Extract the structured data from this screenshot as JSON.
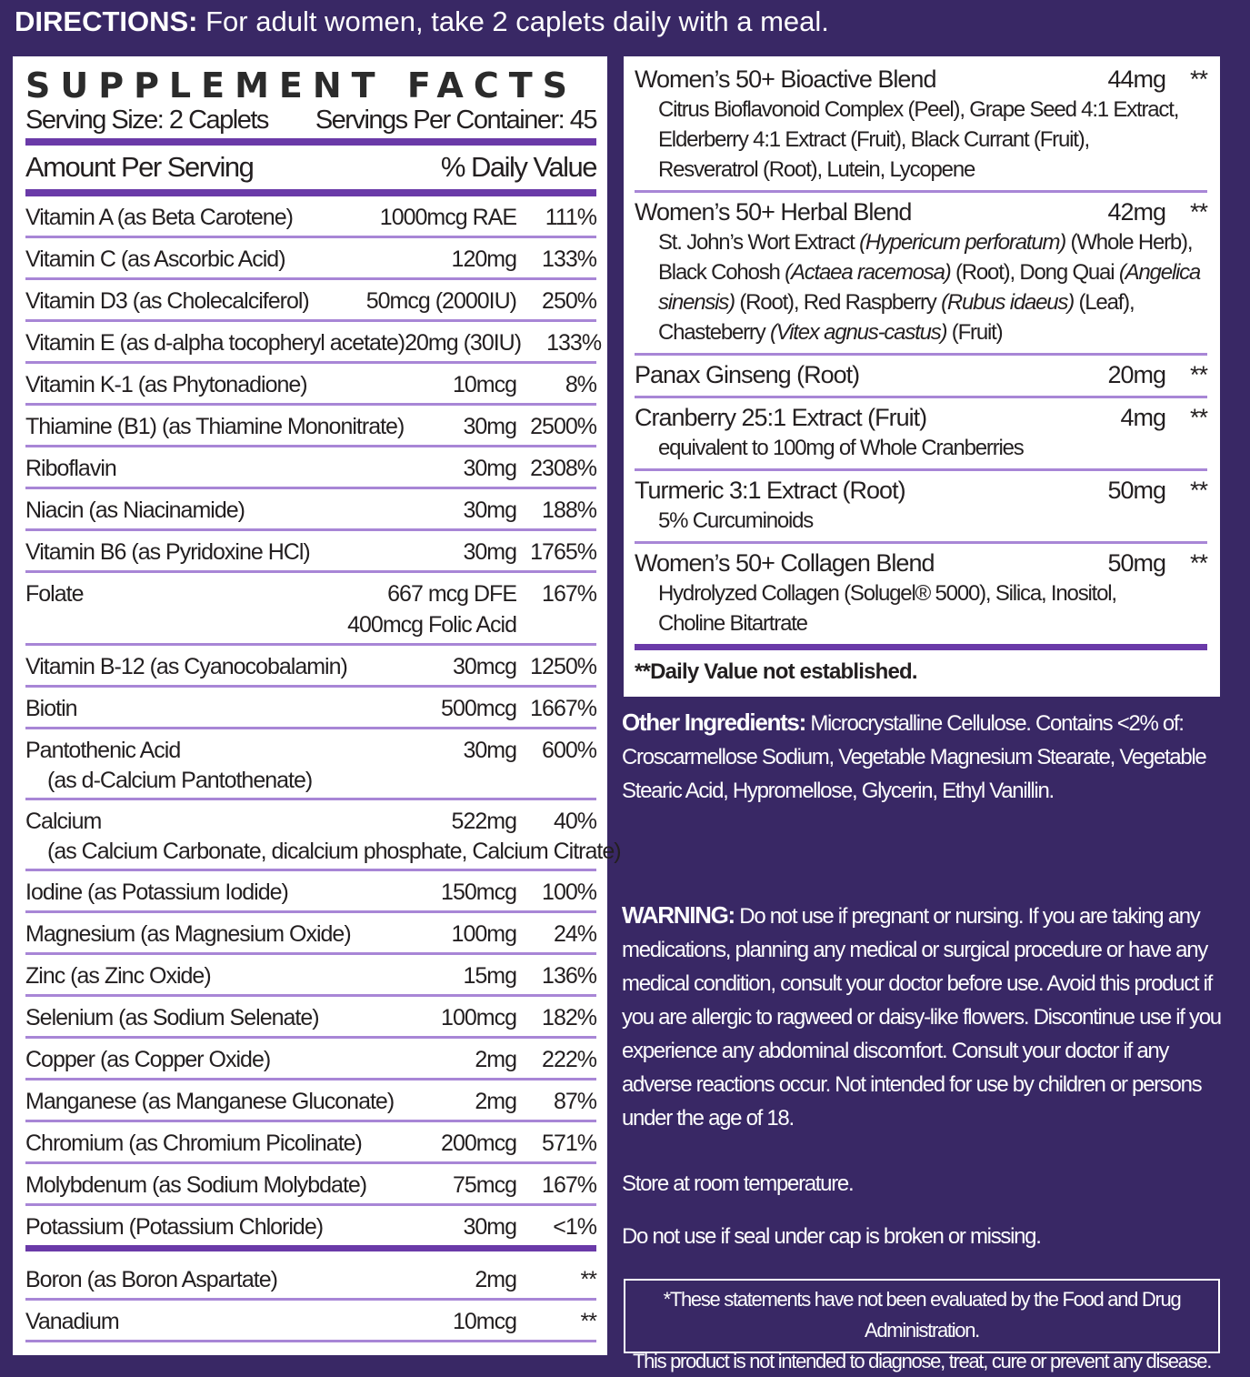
{
  "directions": {
    "label": "DIRECTIONS:",
    "text": " For adult women, take 2 caplets daily with a meal."
  },
  "facts": {
    "title": "SUPPLEMENT FACTS",
    "serving_size": "Serving Size: 2 Caplets",
    "servings_per_container": "Servings Per Container: 45",
    "amount_header": "Amount Per Serving",
    "dv_header": "% Daily Value",
    "rows": [
      {
        "name": "Vitamin A (as Beta Carotene)",
        "amount": "1000mcg RAE",
        "dv": "111%"
      },
      {
        "name": "Vitamin C (as Ascorbic Acid)",
        "amount": "120mg",
        "dv": "133%"
      },
      {
        "name": "Vitamin D3 (as Cholecalciferol)",
        "amount": "50mcg (2000IU)",
        "dv": "250%"
      },
      {
        "name": "Vitamin E (as d-alpha tocopheryl acetate)",
        "amount": "20mg (30IU)",
        "dv": "133%"
      },
      {
        "name": "Vitamin K-1 (as Phytonadione)",
        "amount": "10mcg",
        "dv": "8%"
      },
      {
        "name": "Thiamine (B1) (as Thiamine Mononitrate)",
        "amount": "30mg",
        "dv": "2500%"
      },
      {
        "name": "Riboflavin",
        "amount": "30mg",
        "dv": "2308%"
      },
      {
        "name": "Niacin (as Niacinamide)",
        "amount": "30mg",
        "dv": "188%"
      },
      {
        "name": "Vitamin B6 (as Pyridoxine HCl)",
        "amount": "30mg",
        "dv": "1765%"
      },
      {
        "name": "Folate",
        "amount": "667 mcg DFE",
        "amount2": "400mcg Folic Acid",
        "dv": "167%"
      },
      {
        "name": "Vitamin B-12 (as Cyanocobalamin)",
        "amount": "30mcg",
        "dv": "1250%"
      },
      {
        "name": "Biotin",
        "amount": "500mcg",
        "dv": "1667%"
      },
      {
        "name": "Pantothenic Acid",
        "sub": "(as d-Calcium Pantothenate)",
        "amount": "30mg",
        "dv": "600%"
      },
      {
        "name": "Calcium",
        "sub": "(as Calcium Carbonate, dicalcium phosphate, Calcium Citrate)",
        "amount": "522mg",
        "dv": "40%"
      },
      {
        "name": "Iodine (as Potassium Iodide)",
        "amount": "150mcg",
        "dv": "100%"
      },
      {
        "name": "Magnesium (as Magnesium Oxide)",
        "amount": "100mg",
        "dv": "24%"
      },
      {
        "name": "Zinc (as Zinc Oxide)",
        "amount": "15mg",
        "dv": "136%"
      },
      {
        "name": "Selenium (as Sodium Selenate)",
        "amount": "100mcg",
        "dv": "182%"
      },
      {
        "name": "Copper (as Copper Oxide)",
        "amount": "2mg",
        "dv": "222%"
      },
      {
        "name": "Manganese (as Manganese Gluconate)",
        "amount": "2mg",
        "dv": "87%"
      },
      {
        "name": "Chromium (as Chromium Picolinate)",
        "amount": "200mcg",
        "dv": "571%"
      },
      {
        "name": "Molybdenum (as Sodium Molybdate)",
        "amount": "75mcg",
        "dv": "167%"
      },
      {
        "name": "Potassium (Potassium Chloride)",
        "amount": "30mg",
        "dv": "<1%"
      },
      {
        "name": "Boron (as Boron Aspartate)",
        "amount": "2mg",
        "dv": "**"
      },
      {
        "name": "Vanadium",
        "amount": "10mcg",
        "dv": "**"
      }
    ]
  },
  "blends": [
    {
      "name": "Women’s 50+ Bioactive Blend",
      "amount": "44mg",
      "dv": "**",
      "desc": [
        "Citrus Bioflavonoid Complex (Peel), Grape Seed 4:1 Extract,",
        "Elderberry 4:1 Extract (Fruit), Black Currant (Fruit),",
        "Resveratrol (Root), Lutein, Lycopene"
      ]
    },
    {
      "name": "Women’s 50+ Herbal Blend",
      "amount": "42mg",
      "dv": "**",
      "desc": [
        "St. John’s Wort Extract (Hypericum perforatum) (Whole Herb),",
        "Black Cohosh (Actaea racemosa) (Root), Dong Quai (Angelica",
        "sinensis) (Root), Red Raspberry (Rubus idaeus) (Leaf),",
        "Chasteberry (Vitex agnus-castus) (Fruit)"
      ]
    },
    {
      "name": "Panax Ginseng (Root)",
      "amount": "20mg",
      "dv": "**",
      "desc": []
    },
    {
      "name": "Cranberry 25:1 Extract (Fruit)",
      "amount": "4mg",
      "dv": "**",
      "desc": [
        "equivalent to 100mg of Whole Cranberries"
      ]
    },
    {
      "name": "Turmeric 3:1 Extract (Root)",
      "amount": "50mg",
      "dv": "**",
      "desc": [
        "5% Curcuminoids"
      ]
    },
    {
      "name": "Women’s 50+ Collagen Blend",
      "amount": "50mg",
      "dv": "**",
      "desc": [
        "Hydrolyzed Collagen (Solugel® 5000), Silica, Inositol,",
        "Choline Bitartrate"
      ]
    }
  ],
  "dv_note": "**Daily Value not established.",
  "other_ingredients": {
    "label": "Other Ingredients:",
    "text": " Microcrystalline Cellulose. Contains <2% of: Croscarmellose Sodium, Vegetable Magnesium Stearate, Vegetable Stearic Acid, Hypromellose, Glycerin, Ethyl Vanillin."
  },
  "warning": {
    "label": "WARNING:",
    "text": " Do not use if pregnant or nursing. If you are taking any medications, planning any medical or surgical procedure or have any medical condition, consult your doctor before use. Avoid this product if you are allergic to ragweed or daisy-like flowers. Discontinue use if you experience any abdominal discomfort. Consult your doctor if any adverse reactions occur. Not intended for use by children or persons under the age of 18."
  },
  "storage": "Store at room temperature.",
  "seal": "Do not use if seal under cap is broken or missing.",
  "disclaimer": [
    "*These statements have not been evaluated by the Food and Drug Administration.",
    "This product is not intended to diagnose, treat, cure or prevent any disease."
  ],
  "colors": {
    "background": "#392865",
    "rule": "#6a3aa8",
    "thin_rule": "#a886d6"
  }
}
